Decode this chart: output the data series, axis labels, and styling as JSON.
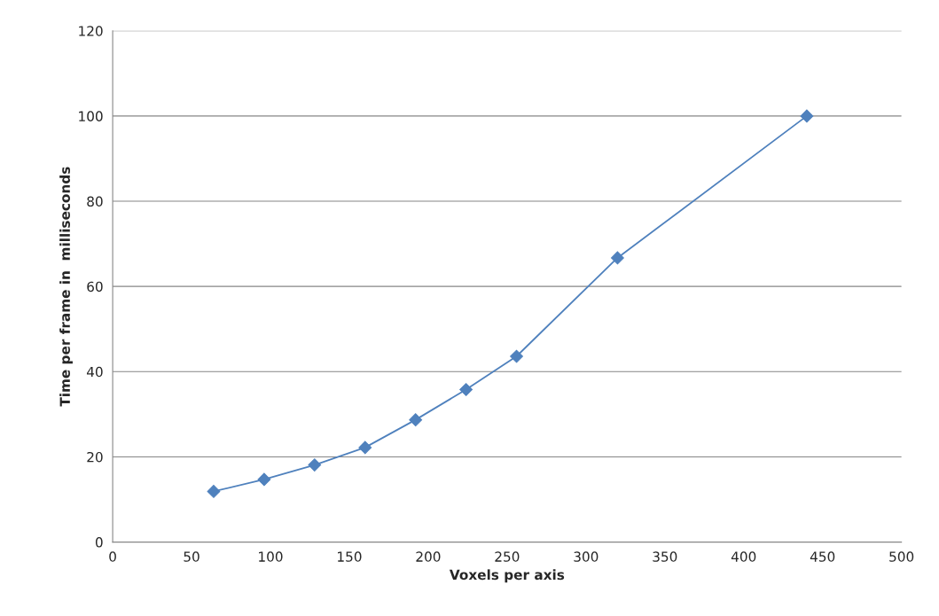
{
  "chart_data": {
    "type": "line",
    "xlabel": "Voxels per axis",
    "ylabel": "Time per frame in  milliseconds",
    "x": [
      64,
      96,
      128,
      160,
      192,
      224,
      256,
      320,
      440
    ],
    "series": [
      {
        "color": "#4f81bd",
        "values": [
          11.9,
          14.7,
          18.1,
          22.2,
          28.7,
          35.8,
          43.6,
          66.7,
          100
        ]
      }
    ],
    "xlim": [
      0,
      500
    ],
    "xticks": [
      0,
      50,
      100,
      150,
      200,
      250,
      300,
      350,
      400,
      450,
      500
    ],
    "ylim": [
      0,
      120
    ],
    "yticks": [
      0,
      20,
      40,
      60,
      80,
      100,
      120
    ],
    "grid": "y",
    "marker": "diamond",
    "line_style": "solid",
    "legend": false
  }
}
